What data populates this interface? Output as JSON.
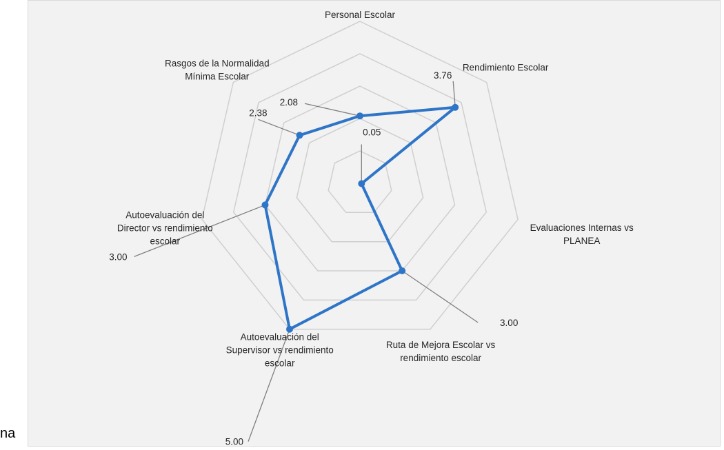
{
  "stray_text": "na",
  "chart_data": {
    "type": "radar",
    "title": "",
    "axes": [
      {
        "label_lines": [
          "Personal Escolar"
        ],
        "value": 2.08,
        "value_label": "2.08"
      },
      {
        "label_lines": [
          "Rendimiento Escolar"
        ],
        "value": 3.76,
        "value_label": "3.76"
      },
      {
        "label_lines": [
          "Evaluaciones Internas vs",
          "PLANEA"
        ],
        "value": 0.05,
        "value_label": "0.05"
      },
      {
        "label_lines": [
          "Ruta de Mejora Escolar vs",
          "rendimiento escolar"
        ],
        "value": 3.0,
        "value_label": "3.00"
      },
      {
        "label_lines": [
          "Autoevaluación del",
          "Supervisor vs rendimiento",
          "escolar"
        ],
        "value": 5.0,
        "value_label": "5.00"
      },
      {
        "label_lines": [
          "Autoevaluación del",
          "Director vs rendimiento",
          "escolar"
        ],
        "value": 3.0,
        "value_label": "3.00"
      },
      {
        "label_lines": [
          "Rasgos de la Normalidad",
          "Mínima Escolar"
        ],
        "value": 2.38,
        "value_label": "2.38"
      }
    ],
    "rmax": 5,
    "rings": 5,
    "grid": true,
    "legend": "none",
    "colors": {
      "series": "#2e75c7",
      "grid": "#cfcfcf",
      "leader": "#7f7f7f"
    }
  }
}
